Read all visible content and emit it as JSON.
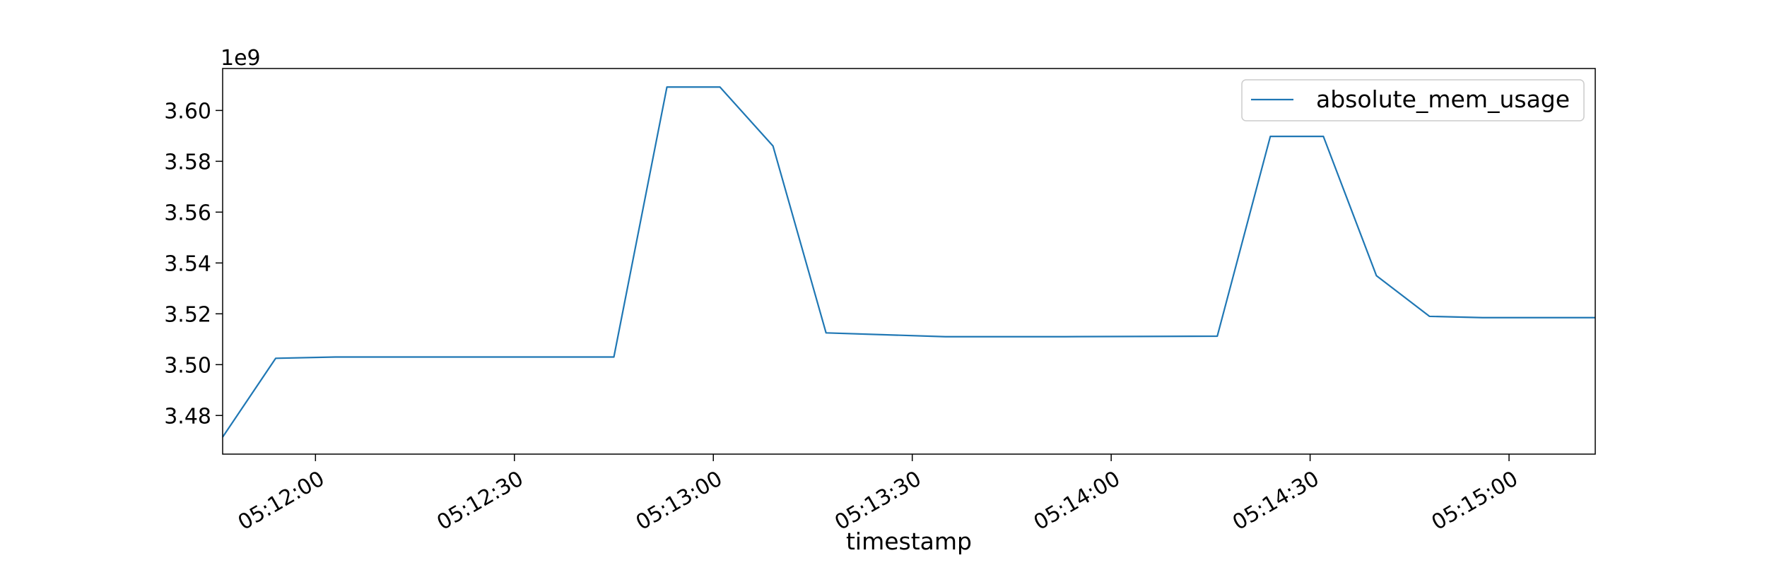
{
  "chart_data": {
    "type": "line",
    "title": "",
    "xlabel": "timestamp",
    "ylabel": "",
    "y_offset_label": "1e9",
    "y_scale": 1000000000,
    "xlim": [
      "05:11:46",
      "05:15:13"
    ],
    "ylim": [
      3.4648,
      3.6165
    ],
    "x_ticks": [
      "05:12:00",
      "05:12:30",
      "05:13:00",
      "05:13:30",
      "05:14:00",
      "05:14:30",
      "05:15:00"
    ],
    "y_ticks": [
      "3.48",
      "3.50",
      "3.52",
      "3.54",
      "3.56",
      "3.58",
      "3.60"
    ],
    "grid": false,
    "legend_position": "top-right",
    "series": [
      {
        "name": "absolute_mem_usage",
        "color": "#1f77b4",
        "x": [
          "05:11:46",
          "05:11:54",
          "05:12:03",
          "05:12:45",
          "05:12:53",
          "05:13:01",
          "05:13:09",
          "05:13:17",
          "05:13:35",
          "05:13:53",
          "05:14:16",
          "05:14:24",
          "05:14:32",
          "05:14:40",
          "05:14:48",
          "05:14:56",
          "05:15:13"
        ],
        "values": [
          3.4715,
          3.5025,
          3.503,
          3.503,
          3.6092,
          3.6092,
          3.586,
          3.5125,
          3.511,
          3.511,
          3.5112,
          3.5898,
          3.5898,
          3.535,
          3.519,
          3.5185,
          3.5185
        ]
      }
    ]
  }
}
